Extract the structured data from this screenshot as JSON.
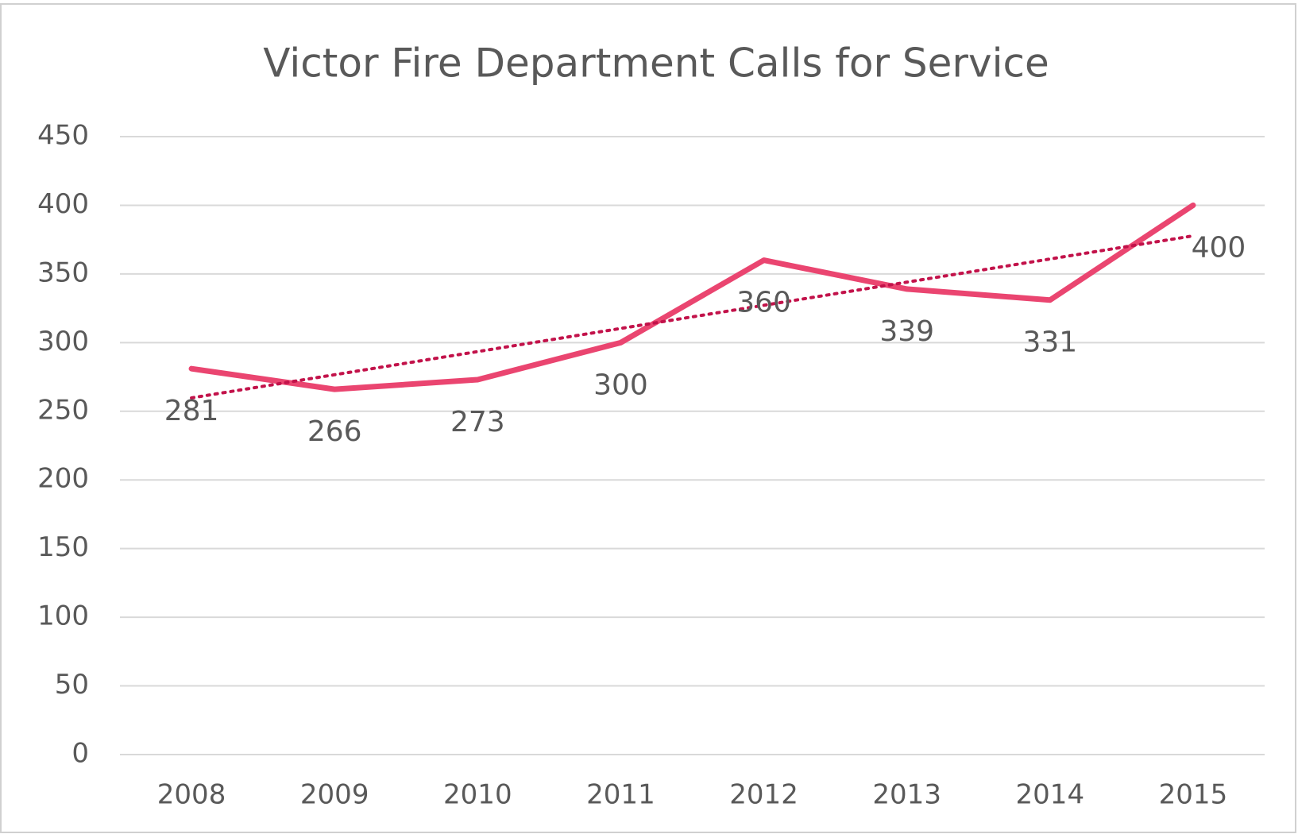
{
  "chart_data": {
    "type": "line",
    "title": "Victor Fire Department Calls for Service",
    "categories": [
      "2008",
      "2009",
      "2010",
      "2011",
      "2012",
      "2013",
      "2014",
      "2015"
    ],
    "values": [
      281,
      266,
      273,
      300,
      360,
      339,
      331,
      400
    ],
    "color": "#ea4570",
    "trendline": "linear",
    "trendline_color": "#c2124a",
    "ylim": [
      0,
      450
    ],
    "yticks": [
      0,
      50,
      100,
      150,
      200,
      250,
      300,
      350,
      400,
      450
    ],
    "grid": true
  }
}
